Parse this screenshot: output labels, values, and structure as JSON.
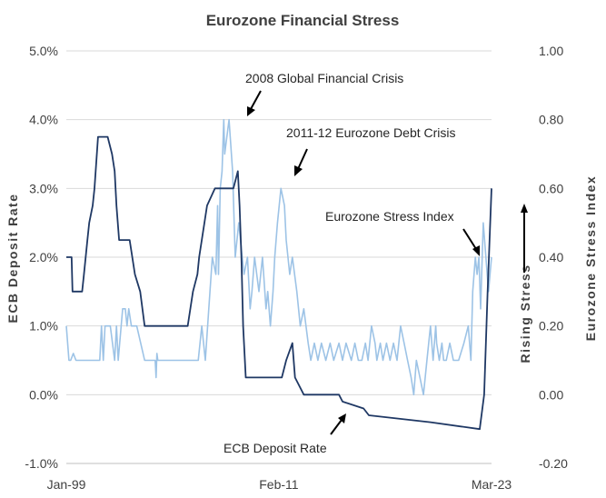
{
  "chart_data": {
    "type": "line",
    "title": "Eurozone Financial Stress",
    "ylabel_left": "ECB  Deposit  Rate",
    "ylabel_right": "Eurozone  Stress  Index",
    "right_side_label": "Rising  Stress",
    "x_ticks": [
      "Jan-99",
      "Feb-11",
      "Mar-23"
    ],
    "x_range": [
      1999.0,
      2023.17
    ],
    "y_left": {
      "min": -1.0,
      "max": 5.0,
      "ticks": [
        -1,
        0,
        1,
        2,
        3,
        4,
        5
      ],
      "tick_labels": [
        "-1.0%",
        "0.0%",
        "1.0%",
        "2.0%",
        "3.0%",
        "4.0%",
        "5.0%"
      ]
    },
    "y_right": {
      "min": -0.2,
      "max": 1.0,
      "ticks": [
        -0.2,
        0,
        0.2,
        0.4,
        0.6,
        0.8,
        1.0
      ],
      "tick_labels": [
        "-0.20",
        "0.00",
        "0.20",
        "0.40",
        "0.60",
        "0.80",
        "1.00"
      ]
    },
    "grid": "horizontal",
    "series": [
      {
        "name": "ECB Deposit Rate",
        "axis": "left",
        "color": "#1f3864",
        "x": [
          1999.0,
          1999.3,
          1999.35,
          1999.9,
          2000.0,
          2000.1,
          2000.2,
          2000.3,
          2000.5,
          2000.6,
          2000.8,
          2001.35,
          2001.6,
          2001.75,
          2001.85,
          2002.0,
          2002.6,
          2002.75,
          2002.9,
          2003.2,
          2003.45,
          2005.9,
          2006.05,
          2006.2,
          2006.45,
          2006.55,
          2006.7,
          2006.85,
          2007.0,
          2007.45,
          2008.5,
          2008.75,
          2008.85,
          2008.95,
          2009.05,
          2009.2,
          2011.25,
          2011.5,
          2011.85,
          2012.0,
          2012.5,
          2014.5,
          2014.7,
          2015.9,
          2016.2,
          2019.7,
          2022.5,
          2022.75,
          2022.85,
          2022.95,
          2023.17
        ],
        "values": [
          2.0,
          2.0,
          1.5,
          1.5,
          1.75,
          2.0,
          2.25,
          2.5,
          2.75,
          3.0,
          3.75,
          3.75,
          3.5,
          3.25,
          2.75,
          2.25,
          2.25,
          2.0,
          1.75,
          1.5,
          1.0,
          1.0,
          1.25,
          1.5,
          1.75,
          2.0,
          2.25,
          2.5,
          2.75,
          3.0,
          3.0,
          3.25,
          2.75,
          2.0,
          1.0,
          0.25,
          0.25,
          0.5,
          0.75,
          0.25,
          0.0,
          0.0,
          -0.1,
          -0.2,
          -0.3,
          -0.4,
          -0.5,
          0.0,
          0.75,
          1.5,
          3.0
        ]
      },
      {
        "name": "Eurozone Stress Index",
        "axis": "right",
        "color": "#9dc3e6",
        "x": [
          1999.0,
          1999.15,
          1999.25,
          1999.4,
          1999.55,
          2000.9,
          2001.0,
          2001.1,
          2001.2,
          2001.5,
          2001.75,
          2001.85,
          2001.95,
          2002.2,
          2002.35,
          2002.45,
          2002.55,
          2002.7,
          2002.85,
          2003.0,
          2003.45,
          2004.05,
          2004.1,
          2004.15,
          2004.2,
          2006.5,
          2006.7,
          2006.9,
          2007.1,
          2007.3,
          2007.5,
          2007.6,
          2007.65,
          2007.75,
          2007.85,
          2007.95,
          2008.0,
          2008.25,
          2008.45,
          2008.6,
          2008.8,
          2009.0,
          2009.1,
          2009.3,
          2009.45,
          2009.55,
          2009.7,
          2009.95,
          2010.15,
          2010.35,
          2010.45,
          2010.6,
          2010.75,
          2010.85,
          2011.0,
          2011.2,
          2011.4,
          2011.5,
          2011.7,
          2011.85,
          2012.1,
          2012.3,
          2012.5,
          2012.75,
          2012.9,
          2013.1,
          2013.3,
          2013.5,
          2013.75,
          2014.0,
          2014.2,
          2014.5,
          2014.7,
          2014.9,
          2015.2,
          2015.4,
          2015.6,
          2015.8,
          2016.0,
          2016.15,
          2016.35,
          2016.55,
          2016.65,
          2016.85,
          2017.0,
          2017.2,
          2017.4,
          2017.6,
          2017.8,
          2018.0,
          2018.2,
          2018.4,
          2018.6,
          2018.75,
          2018.9,
          2019.1,
          2019.3,
          2019.5,
          2019.7,
          2019.85,
          2020.0,
          2020.05,
          2020.2,
          2020.35,
          2020.45,
          2020.6,
          2020.8,
          2021.0,
          2021.3,
          2021.6,
          2021.85,
          2022.0,
          2022.1,
          2022.25,
          2022.35,
          2022.45,
          2022.55,
          2022.7,
          2022.85,
          2023.0,
          2023.17
        ],
        "values": [
          0.2,
          0.1,
          0.1,
          0.12,
          0.1,
          0.1,
          0.2,
          0.1,
          0.2,
          0.2,
          0.1,
          0.2,
          0.1,
          0.25,
          0.25,
          0.2,
          0.25,
          0.2,
          0.2,
          0.2,
          0.1,
          0.1,
          0.05,
          0.12,
          0.1,
          0.1,
          0.2,
          0.1,
          0.25,
          0.4,
          0.35,
          0.55,
          0.35,
          0.6,
          0.65,
          0.8,
          0.7,
          0.8,
          0.65,
          0.4,
          0.5,
          0.4,
          0.35,
          0.4,
          0.25,
          0.3,
          0.4,
          0.3,
          0.4,
          0.25,
          0.3,
          0.2,
          0.3,
          0.4,
          0.5,
          0.6,
          0.55,
          0.45,
          0.35,
          0.4,
          0.3,
          0.2,
          0.25,
          0.15,
          0.1,
          0.15,
          0.1,
          0.15,
          0.1,
          0.15,
          0.1,
          0.15,
          0.1,
          0.15,
          0.1,
          0.15,
          0.1,
          0.1,
          0.15,
          0.1,
          0.2,
          0.15,
          0.1,
          0.15,
          0.1,
          0.15,
          0.1,
          0.15,
          0.1,
          0.2,
          0.15,
          0.1,
          0.05,
          0.0,
          0.1,
          0.05,
          0.0,
          0.1,
          0.2,
          0.1,
          0.2,
          0.15,
          0.1,
          0.15,
          0.1,
          0.1,
          0.15,
          0.1,
          0.1,
          0.15,
          0.2,
          0.1,
          0.3,
          0.4,
          0.35,
          0.4,
          0.25,
          0.5,
          0.4,
          0.3,
          0.4
        ]
      }
    ],
    "annotations": [
      {
        "text": "2008 Global Financial Crisis"
      },
      {
        "text": "2011-12 Eurozone Debt Crisis"
      },
      {
        "text": "Eurozone Stress Index"
      },
      {
        "text": "ECB Deposit Rate"
      }
    ]
  }
}
